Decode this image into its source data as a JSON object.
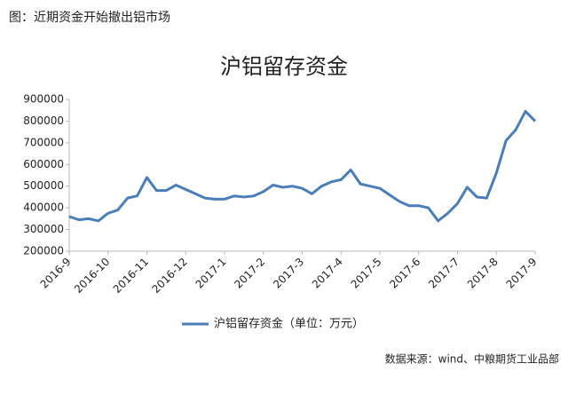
{
  "chart_data": {
    "type": "line",
    "caption": "图：近期资金开始撤出铝市场",
    "title": "沪铝留存资金",
    "source": "数据来源：wind、中粮期货工业品部",
    "categories": [
      "2016-9",
      null,
      null,
      null,
      "2016-10",
      null,
      null,
      null,
      "2016-11",
      null,
      null,
      null,
      "2016-12",
      null,
      null,
      null,
      "2017-1",
      null,
      null,
      null,
      "2017-2",
      null,
      null,
      null,
      "2017-3",
      null,
      null,
      null,
      "2017-4",
      null,
      null,
      null,
      "2017-5",
      null,
      null,
      null,
      "2017-6",
      null,
      null,
      null,
      "2017-7",
      null,
      null,
      null,
      "2017-8",
      null,
      null,
      null,
      "2017-9"
    ],
    "series": [
      {
        "name": "沪铝留存资金（单位：万元）",
        "color": "#4a7ebb",
        "values": [
          360000,
          345000,
          350000,
          340000,
          375000,
          390000,
          445000,
          455000,
          540000,
          480000,
          480000,
          505000,
          485000,
          465000,
          445000,
          440000,
          440000,
          455000,
          450000,
          455000,
          475000,
          505000,
          495000,
          500000,
          490000,
          465000,
          500000,
          520000,
          530000,
          575000,
          510000,
          500000,
          490000,
          460000,
          430000,
          410000,
          410000,
          400000,
          340000,
          375000,
          420000,
          495000,
          450000,
          445000,
          560000,
          710000,
          760000,
          845000,
          800000
        ]
      }
    ],
    "ylim": [
      200000,
      900000
    ],
    "yticks": [
      200000,
      300000,
      400000,
      500000,
      600000,
      700000,
      800000,
      900000
    ],
    "grid": false,
    "legend": "bottom"
  }
}
